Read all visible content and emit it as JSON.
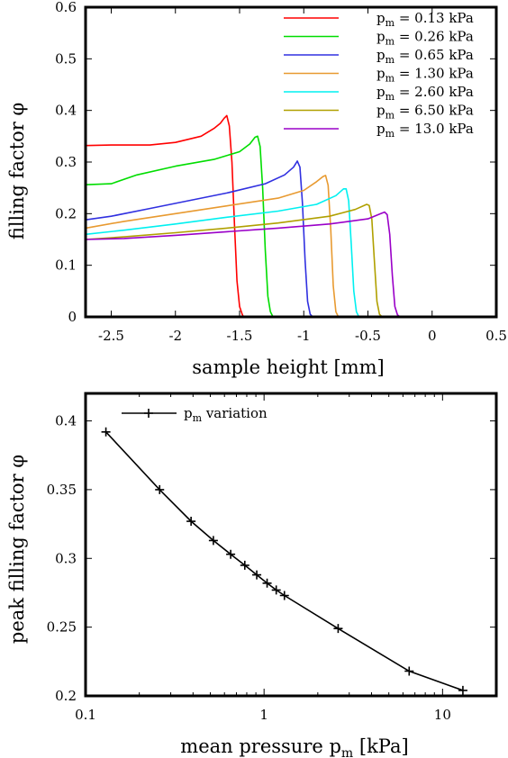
{
  "chart_data": [
    {
      "type": "line",
      "xlabel": "sample height [mm]",
      "ylabel": "filling factor φ",
      "xlim": [
        -2.7,
        0.5
      ],
      "ylim": [
        0,
        0.6
      ],
      "xticks": [
        "-2.5",
        "-2",
        "-1.5",
        "-1",
        "-0.5",
        "0",
        "0.5"
      ],
      "yticks": [
        "0",
        "0.1",
        "0.2",
        "0.3",
        "0.4",
        "0.5",
        "0.6"
      ],
      "legend_position": "top-right",
      "series": [
        {
          "name_main": "p",
          "name_sub": "m",
          "name_rest": " = 0.13 kPa",
          "color": "#ff0000",
          "x": [
            -2.7,
            -2.5,
            -2.2,
            -2.0,
            -1.8,
            -1.7,
            -1.65,
            -1.62,
            -1.6,
            -1.58,
            -1.56,
            -1.54,
            -1.52,
            -1.5,
            -1.48,
            -1.47
          ],
          "y": [
            0.332,
            0.333,
            0.333,
            0.338,
            0.35,
            0.365,
            0.375,
            0.385,
            0.39,
            0.37,
            0.3,
            0.18,
            0.07,
            0.02,
            0.005,
            0.0
          ]
        },
        {
          "name_main": "p",
          "name_sub": "m",
          "name_rest": " = 0.26 kPa",
          "color": "#00dd00",
          "x": [
            -2.7,
            -2.5,
            -2.3,
            -2.0,
            -1.7,
            -1.5,
            -1.42,
            -1.38,
            -1.36,
            -1.34,
            -1.32,
            -1.3,
            -1.28,
            -1.26,
            -1.24
          ],
          "y": [
            0.256,
            0.258,
            0.275,
            0.292,
            0.305,
            0.32,
            0.335,
            0.348,
            0.35,
            0.33,
            0.25,
            0.13,
            0.04,
            0.01,
            0.0
          ]
        },
        {
          "name_main": "p",
          "name_sub": "m",
          "name_rest": " = 0.65 kPa",
          "color": "#3030e0",
          "x": [
            -2.7,
            -2.5,
            -2.2,
            -2.0,
            -1.6,
            -1.3,
            -1.15,
            -1.08,
            -1.05,
            -1.03,
            -1.01,
            -0.99,
            -0.97,
            -0.95,
            -0.93
          ],
          "y": [
            0.188,
            0.195,
            0.21,
            0.22,
            0.24,
            0.258,
            0.275,
            0.29,
            0.302,
            0.29,
            0.22,
            0.11,
            0.03,
            0.005,
            0.0
          ]
        },
        {
          "name_main": "p",
          "name_sub": "m",
          "name_rest": " = 1.30 kPa",
          "color": "#e89a30",
          "x": [
            -2.7,
            -2.4,
            -2.0,
            -1.6,
            -1.2,
            -1.0,
            -0.9,
            -0.85,
            -0.83,
            -0.81,
            -0.79,
            -0.77,
            -0.75,
            -0.73
          ],
          "y": [
            0.172,
            0.185,
            0.2,
            0.215,
            0.23,
            0.245,
            0.262,
            0.272,
            0.274,
            0.255,
            0.17,
            0.06,
            0.01,
            0.0
          ]
        },
        {
          "name_main": "p",
          "name_sub": "m",
          "name_rest": " = 2.60 kPa",
          "color": "#00f0f0",
          "x": [
            -2.7,
            -2.4,
            -2.0,
            -1.6,
            -1.2,
            -0.9,
            -0.75,
            -0.69,
            -0.67,
            -0.65,
            -0.63,
            -0.61,
            -0.59,
            -0.57
          ],
          "y": [
            0.16,
            0.168,
            0.18,
            0.193,
            0.205,
            0.218,
            0.235,
            0.248,
            0.248,
            0.225,
            0.14,
            0.05,
            0.01,
            0.0
          ]
        },
        {
          "name_main": "p",
          "name_sub": "m",
          "name_rest": " = 6.50 kPa",
          "color": "#b0a000",
          "x": [
            -2.7,
            -2.4,
            -2.0,
            -1.6,
            -1.2,
            -0.8,
            -0.6,
            -0.51,
            -0.49,
            -0.47,
            -0.45,
            -0.43,
            -0.41,
            -0.39
          ],
          "y": [
            0.15,
            0.155,
            0.163,
            0.172,
            0.182,
            0.195,
            0.208,
            0.218,
            0.216,
            0.19,
            0.11,
            0.03,
            0.005,
            0.0
          ]
        },
        {
          "name_main": "p",
          "name_sub": "m",
          "name_rest": " = 13.0 kPa",
          "color": "#9a00c8",
          "x": [
            -2.7,
            -2.4,
            -2.0,
            -1.6,
            -1.2,
            -0.8,
            -0.5,
            -0.4,
            -0.37,
            -0.35,
            -0.33,
            -0.31,
            -0.29,
            -0.27,
            -0.25
          ],
          "y": [
            0.15,
            0.152,
            0.158,
            0.165,
            0.172,
            0.18,
            0.19,
            0.2,
            0.203,
            0.198,
            0.16,
            0.08,
            0.02,
            0.004,
            0.0
          ]
        }
      ]
    },
    {
      "type": "line",
      "xscale": "log",
      "xlabel_main": "mean pressure p",
      "xlabel_sub": "m",
      "xlabel_rest": " [kPa]",
      "ylabel": "peak filling factor φ",
      "xlim": [
        0.1,
        20
      ],
      "ylim": [
        0.2,
        0.42
      ],
      "xticks": [
        {
          "v": 0.1,
          "label": "0.1"
        },
        {
          "v": 1,
          "label": "1"
        },
        {
          "v": 10,
          "label": "10"
        }
      ],
      "yticks": [
        "0.2",
        "0.25",
        "0.3",
        "0.35",
        "0.4"
      ],
      "legend_position": "top-left",
      "series": [
        {
          "name_main": "p",
          "name_sub": "m",
          "name_rest": " variation",
          "color": "#000000",
          "x": [
            0.13,
            0.26,
            0.39,
            0.52,
            0.65,
            0.78,
            0.91,
            1.04,
            1.17,
            1.3,
            2.6,
            6.5,
            13.0
          ],
          "y": [
            0.392,
            0.35,
            0.327,
            0.313,
            0.303,
            0.295,
            0.288,
            0.282,
            0.277,
            0.273,
            0.249,
            0.218,
            0.204
          ]
        }
      ]
    }
  ]
}
